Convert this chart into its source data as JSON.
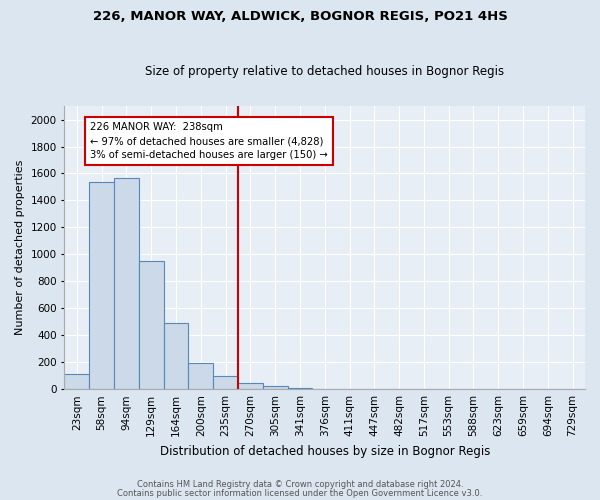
{
  "title1": "226, MANOR WAY, ALDWICK, BOGNOR REGIS, PO21 4HS",
  "title2": "Size of property relative to detached houses in Bognor Regis",
  "xlabel": "Distribution of detached houses by size in Bognor Regis",
  "ylabel": "Number of detached properties",
  "bin_labels": [
    "23sqm",
    "58sqm",
    "94sqm",
    "129sqm",
    "164sqm",
    "200sqm",
    "235sqm",
    "270sqm",
    "305sqm",
    "341sqm",
    "376sqm",
    "411sqm",
    "447sqm",
    "482sqm",
    "517sqm",
    "553sqm",
    "588sqm",
    "623sqm",
    "659sqm",
    "694sqm",
    "729sqm"
  ],
  "bar_heights": [
    110,
    1540,
    1565,
    950,
    490,
    195,
    100,
    45,
    20,
    10,
    0,
    0,
    0,
    0,
    0,
    0,
    0,
    0,
    0,
    0,
    0
  ],
  "bar_color": "#ccd9e8",
  "bar_edge_color": "#5588bb",
  "vline_x_index": 6,
  "vline_color": "#cc0000",
  "annotation_text": "226 MANOR WAY:  238sqm\n← 97% of detached houses are smaller (4,828)\n3% of semi-detached houses are larger (150) →",
  "annotation_box_color": "white",
  "annotation_box_edge": "#cc0000",
  "ylim": [
    0,
    2100
  ],
  "yticks": [
    0,
    200,
    400,
    600,
    800,
    1000,
    1200,
    1400,
    1600,
    1800,
    2000
  ],
  "footer1": "Contains HM Land Registry data © Crown copyright and database right 2024.",
  "footer2": "Contains public sector information licensed under the Open Government Licence v3.0.",
  "bg_color": "#dce6f0",
  "plot_bg_color": "#e8eef5",
  "grid_color": "#ffffff",
  "title1_fontsize": 9.5,
  "title2_fontsize": 8.5,
  "ylabel_fontsize": 8.0,
  "xlabel_fontsize": 8.5,
  "tick_fontsize": 7.5,
  "footer_fontsize": 6.0
}
